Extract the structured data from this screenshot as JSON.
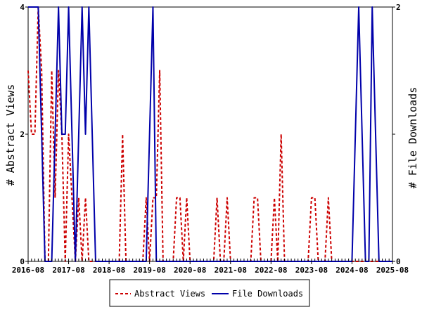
{
  "chart_data": {
    "type": "line",
    "x_tick_labels": [
      "2016-08",
      "2017-08",
      "2018-08",
      "2019-08",
      "2020-08",
      "2021-08",
      "2022-08",
      "2023-08",
      "2024-08",
      "2025-08"
    ],
    "x_range_months": [
      "2016-08",
      "2025-08"
    ],
    "y_left": {
      "label": "# Abstract Views",
      "range": [
        0,
        4
      ],
      "ticks": [
        "0",
        "2",
        "4"
      ]
    },
    "y_right": {
      "label": "# File Downloads",
      "range": [
        0,
        2
      ],
      "ticks": [
        "0",
        "1",
        "2"
      ]
    },
    "legend_position": "bottom-center",
    "series": [
      {
        "name": "Abstract Views",
        "axis": "left",
        "color": "#cc0000",
        "style": "dashed",
        "x": [
          "2016-08",
          "2016-09",
          "2016-10",
          "2016-11",
          "2016-12",
          "2017-01",
          "2017-02",
          "2017-03",
          "2017-04",
          "2017-05",
          "2017-06",
          "2017-07",
          "2017-08",
          "2017-09",
          "2017-10",
          "2017-11",
          "2017-12",
          "2018-01",
          "2018-02",
          "2018-03",
          "2018-04",
          "2018-05",
          "2018-06",
          "2018-07",
          "2018-08",
          "2018-09",
          "2018-10",
          "2018-11",
          "2018-12",
          "2019-01",
          "2019-02",
          "2019-03",
          "2019-04",
          "2019-05",
          "2019-06",
          "2019-07",
          "2019-08",
          "2019-09",
          "2019-10",
          "2019-11",
          "2019-12",
          "2020-01",
          "2020-02",
          "2020-03",
          "2020-04",
          "2020-05",
          "2020-06",
          "2020-07",
          "2020-08",
          "2020-09",
          "2020-10",
          "2020-11",
          "2020-12",
          "2021-01",
          "2021-02",
          "2021-03",
          "2021-04",
          "2021-05",
          "2021-06",
          "2021-07",
          "2021-08",
          "2021-09",
          "2021-10",
          "2021-11",
          "2021-12",
          "2022-01",
          "2022-02",
          "2022-03",
          "2022-04",
          "2022-05",
          "2022-06",
          "2022-07",
          "2022-08",
          "2022-09",
          "2022-10",
          "2022-11",
          "2022-12",
          "2023-01",
          "2023-02",
          "2023-03",
          "2023-04",
          "2023-05",
          "2023-06",
          "2023-07",
          "2023-08",
          "2023-09",
          "2023-10",
          "2023-11",
          "2023-12",
          "2024-01",
          "2024-02",
          "2024-03",
          "2024-04",
          "2024-05",
          "2024-06",
          "2024-07",
          "2024-08",
          "2024-09",
          "2024-10",
          "2024-11",
          "2024-12",
          "2025-01",
          "2025-02",
          "2025-03",
          "2025-04",
          "2025-05",
          "2025-06",
          "2025-07",
          "2025-08"
        ],
        "values": [
          3,
          2,
          2,
          4,
          3,
          0,
          0,
          3,
          1,
          3,
          2,
          0,
          2,
          1,
          0,
          1,
          0,
          1,
          0,
          0,
          0,
          0,
          0,
          0,
          0,
          0,
          0,
          0,
          2,
          0,
          0,
          0,
          0,
          0,
          0,
          1,
          0,
          1,
          1,
          3,
          0,
          0,
          0,
          0,
          1,
          1,
          0,
          1,
          0,
          0,
          0,
          0,
          0,
          0,
          0,
          0,
          1,
          0,
          0,
          1,
          0,
          0,
          0,
          0,
          0,
          0,
          0,
          1,
          1,
          0,
          0,
          0,
          0,
          1,
          0,
          2,
          0,
          0,
          0,
          0,
          0,
          0,
          0,
          0,
          1,
          1,
          0,
          0,
          0,
          1,
          0,
          0,
          0,
          0,
          0,
          0,
          0,
          0,
          0,
          0,
          0,
          0,
          0,
          0,
          0,
          0,
          0,
          0,
          0
        ]
      },
      {
        "name": "File Downloads",
        "axis": "right",
        "color": "#0000aa",
        "style": "solid",
        "x": [
          "2016-08",
          "2016-09",
          "2016-10",
          "2016-11",
          "2016-12",
          "2017-01",
          "2017-02",
          "2017-03",
          "2017-04",
          "2017-05",
          "2017-06",
          "2017-07",
          "2017-08",
          "2017-09",
          "2017-10",
          "2017-11",
          "2017-12",
          "2018-01",
          "2018-02",
          "2018-03",
          "2018-04",
          "2018-05",
          "2018-06",
          "2018-07",
          "2018-08",
          "2018-09",
          "2018-10",
          "2018-11",
          "2018-12",
          "2019-01",
          "2019-02",
          "2019-03",
          "2019-04",
          "2019-05",
          "2019-06",
          "2019-07",
          "2019-08",
          "2019-09",
          "2019-10",
          "2019-11",
          "2019-12",
          "2020-01",
          "2020-02",
          "2020-03",
          "2020-04",
          "2020-05",
          "2020-06",
          "2020-07",
          "2020-08",
          "2020-09",
          "2020-10",
          "2020-11",
          "2020-12",
          "2021-01",
          "2021-02",
          "2021-03",
          "2021-04",
          "2021-05",
          "2021-06",
          "2021-07",
          "2021-08",
          "2021-09",
          "2021-10",
          "2021-11",
          "2021-12",
          "2022-01",
          "2022-02",
          "2022-03",
          "2022-04",
          "2022-05",
          "2022-06",
          "2022-07",
          "2022-08",
          "2022-09",
          "2022-10",
          "2022-11",
          "2022-12",
          "2023-01",
          "2023-02",
          "2023-03",
          "2023-04",
          "2023-05",
          "2023-06",
          "2023-07",
          "2023-08",
          "2023-09",
          "2023-10",
          "2023-11",
          "2023-12",
          "2024-01",
          "2024-02",
          "2024-03",
          "2024-04",
          "2024-05",
          "2024-06",
          "2024-07",
          "2024-08",
          "2024-09",
          "2024-10",
          "2024-11",
          "2024-12",
          "2025-01",
          "2025-02",
          "2025-03",
          "2025-04",
          "2025-05",
          "2025-06",
          "2025-07",
          "2025-08"
        ],
        "values": [
          2,
          2,
          2,
          2,
          1,
          0,
          0,
          0,
          1,
          2,
          1,
          1,
          2,
          1,
          0,
          1,
          2,
          1,
          2,
          1,
          0,
          0,
          0,
          0,
          0,
          0,
          0,
          0,
          0,
          0,
          0,
          0,
          0,
          0,
          0,
          0,
          1,
          2,
          0,
          0,
          0,
          0,
          0,
          0,
          0,
          0,
          0,
          0,
          0,
          0,
          0,
          0,
          0,
          0,
          0,
          0,
          0,
          0,
          0,
          0,
          0,
          0,
          0,
          0,
          0,
          0,
          0,
          0,
          0,
          0,
          0,
          0,
          0,
          0,
          0,
          0,
          0,
          0,
          0,
          0,
          0,
          0,
          0,
          0,
          0,
          0,
          0,
          0,
          0,
          0,
          0,
          0,
          0,
          0,
          0,
          0,
          0,
          1,
          2,
          1,
          0,
          0,
          2,
          1,
          0,
          0,
          0,
          0,
          0
        ]
      }
    ]
  }
}
